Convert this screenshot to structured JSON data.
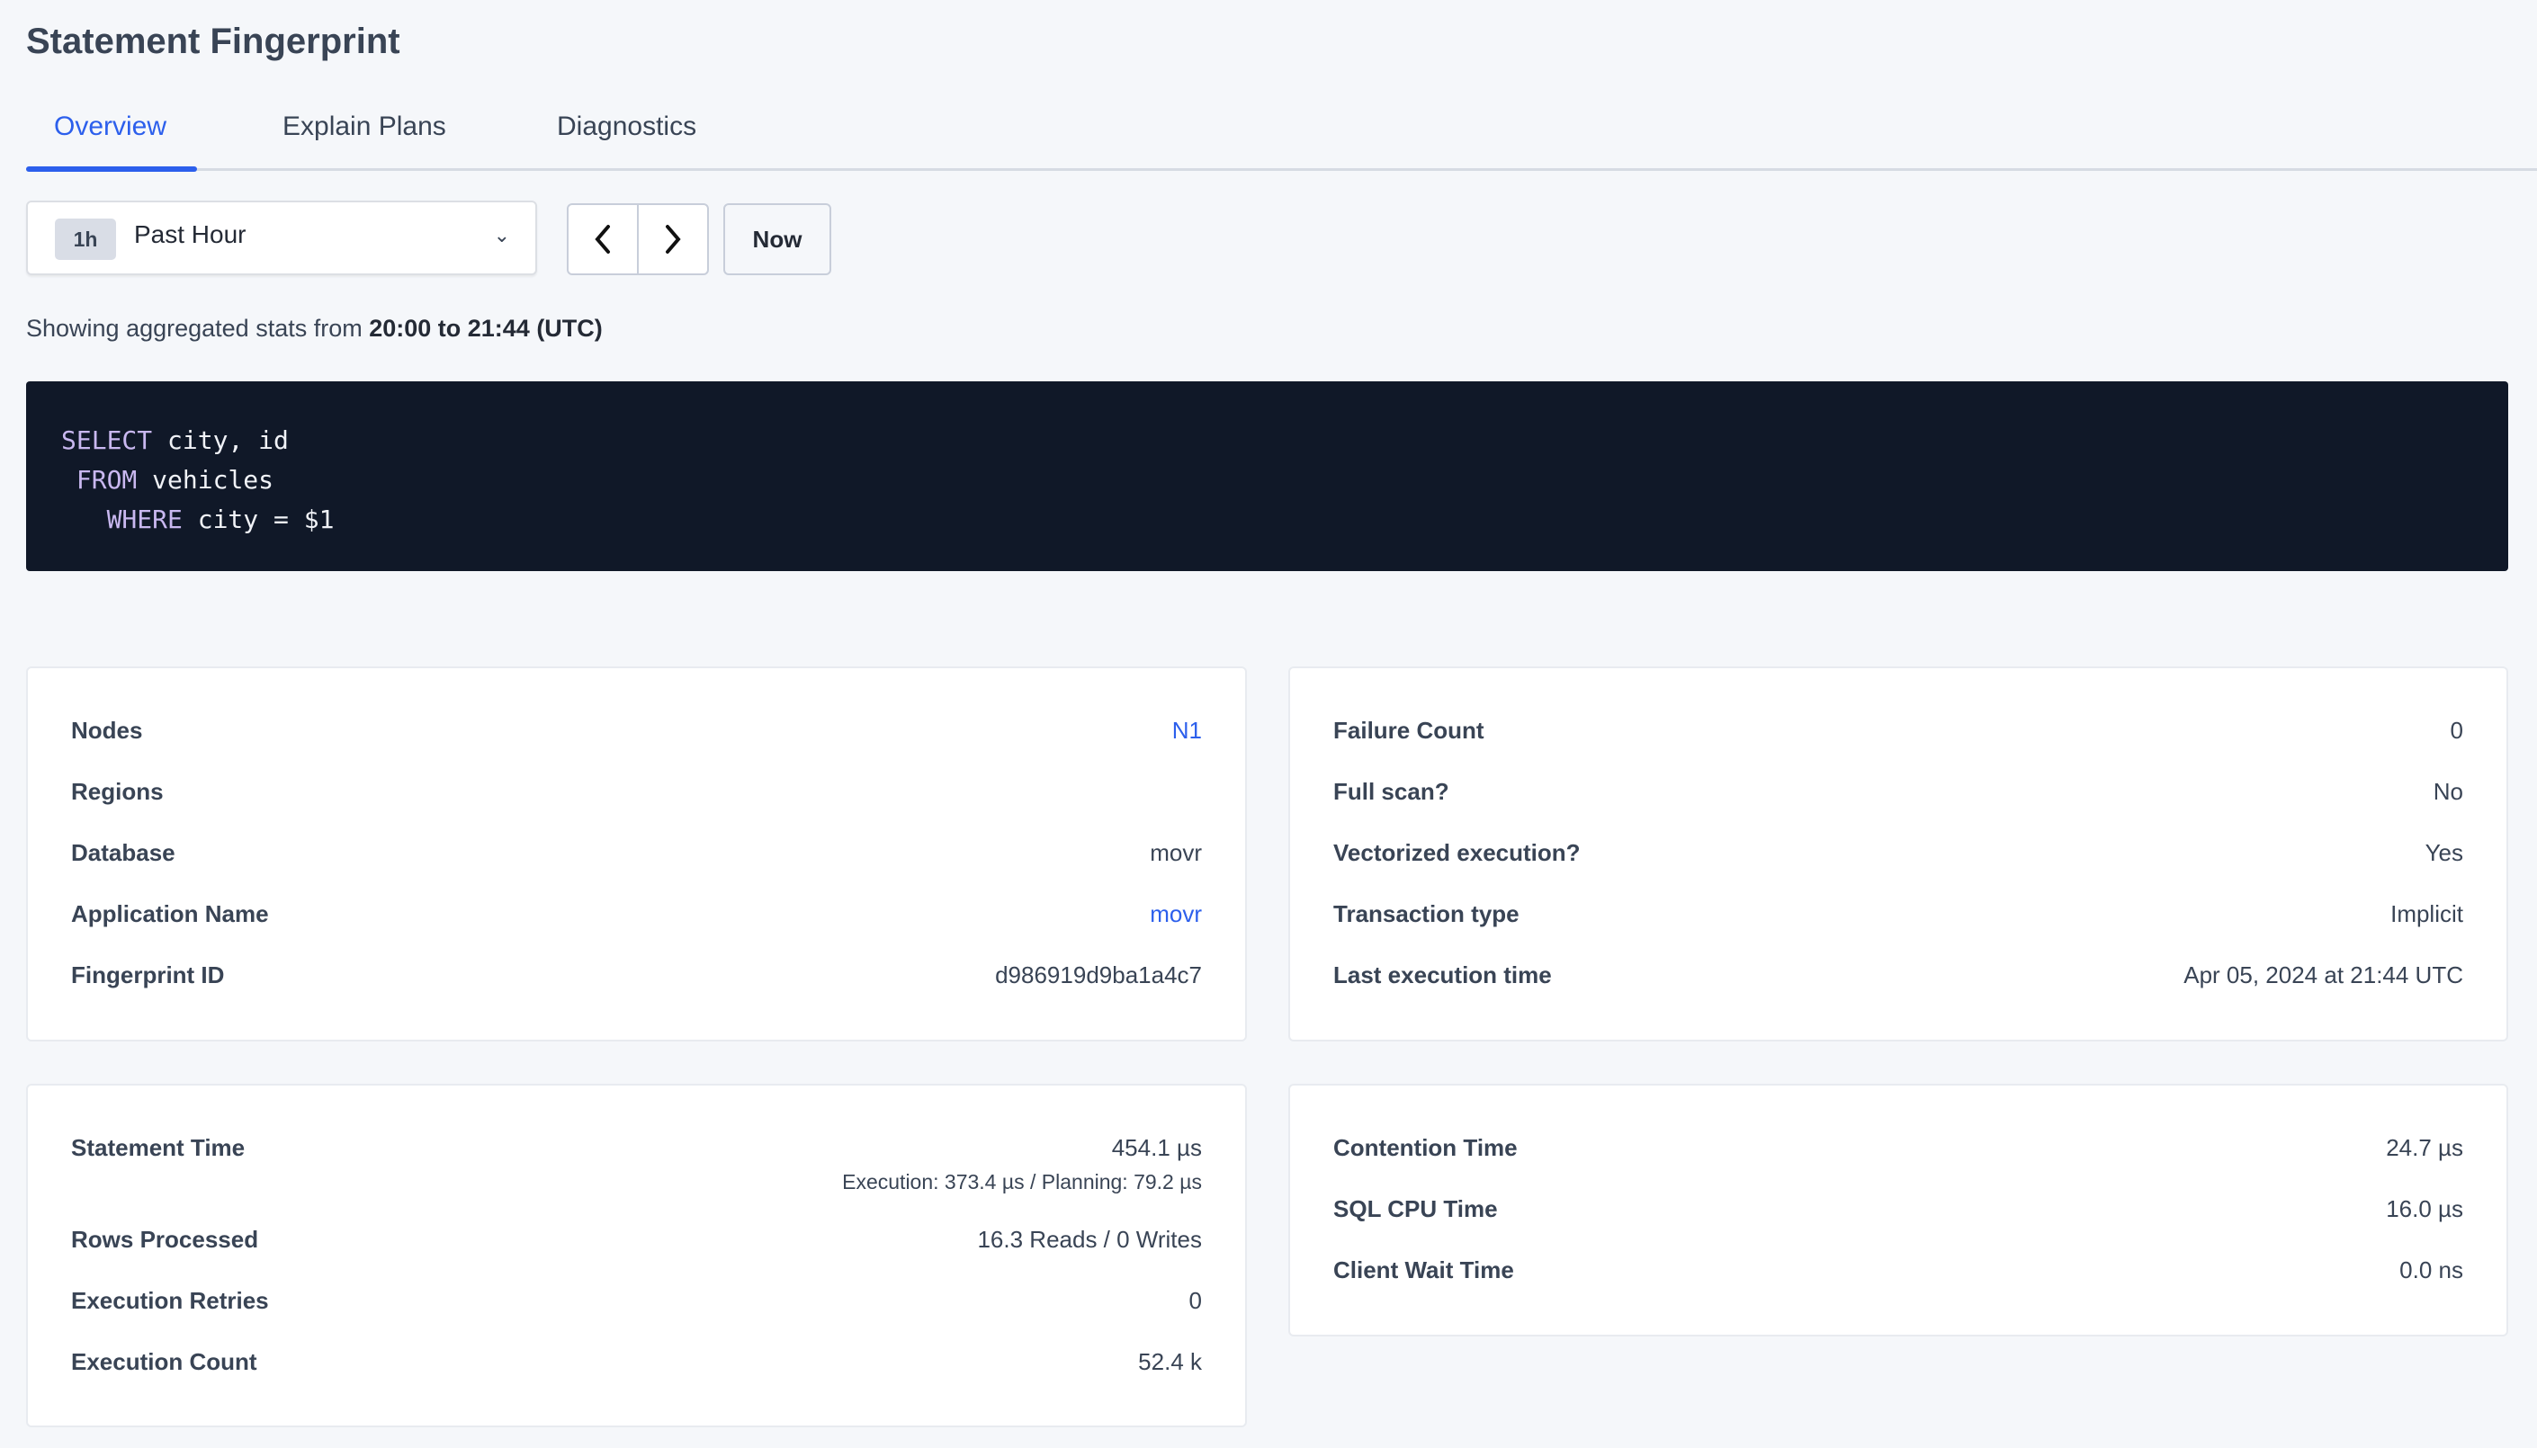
{
  "page": {
    "title": "Statement Fingerprint"
  },
  "tabs": [
    {
      "label": "Overview",
      "active": true
    },
    {
      "label": "Explain Plans"
    },
    {
      "label": "Diagnostics"
    }
  ],
  "time_picker": {
    "badge": "1h",
    "label": "Past Hour",
    "prev_icon": "chevron-left-icon",
    "next_icon": "chevron-right-icon",
    "now_label": "Now"
  },
  "showing": {
    "prefix": "Showing aggregated stats from ",
    "range": "20:00 to 21:44 (UTC)"
  },
  "sql": {
    "l1_kw": "SELECT",
    "l1": " city, id",
    "l2_kw": " FROM",
    "l2": " vehicles",
    "l3_kw": "   WHERE",
    "l3": " city = $1"
  },
  "card1": [
    {
      "label": "Nodes",
      "value": "N1",
      "link": true
    },
    {
      "label": "Regions",
      "value": ""
    },
    {
      "label": "Database",
      "value": "movr"
    },
    {
      "label": "Application Name",
      "value": "movr",
      "link": true
    },
    {
      "label": "Fingerprint ID",
      "value": "d986919d9ba1a4c7"
    }
  ],
  "card2": [
    {
      "label": "Failure Count",
      "value": "0"
    },
    {
      "label": "Full scan?",
      "value": "No"
    },
    {
      "label": "Vectorized execution?",
      "value": "Yes"
    },
    {
      "label": "Transaction type",
      "value": "Implicit"
    },
    {
      "label": "Last execution time",
      "value": "Apr 05, 2024 at 21:44 UTC"
    }
  ],
  "card3": {
    "statement_time": {
      "label": "Statement Time",
      "value": "454.1 µs",
      "sub": "Execution: 373.4 µs / Planning: 79.2 µs"
    },
    "rows": [
      {
        "label": "Rows Processed",
        "value": "16.3 Reads / 0 Writes"
      },
      {
        "label": "Execution Retries",
        "value": "0"
      },
      {
        "label": "Execution Count",
        "value": "52.4 k"
      }
    ]
  },
  "card4": [
    {
      "label": "Contention Time",
      "value": "24.7 µs"
    },
    {
      "label": "SQL CPU Time",
      "value": "16.0 µs"
    },
    {
      "label": "Client Wait Time",
      "value": "0.0 ns"
    }
  ],
  "colors": {
    "accent": "#2c5fec",
    "code_bg": "#101828",
    "keyword": "#c9b8f0",
    "background": "#f5f7fa"
  }
}
